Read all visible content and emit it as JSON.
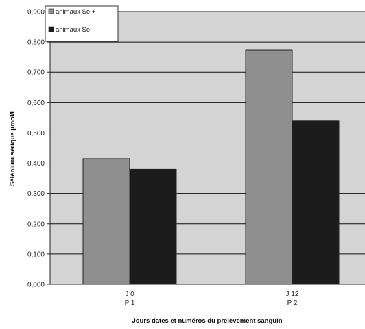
{
  "chart_data": {
    "type": "bar",
    "categories": [
      {
        "line1": "J 0",
        "line2": "P 1"
      },
      {
        "line1": "J 12",
        "line2": "P 2"
      }
    ],
    "series": [
      {
        "name": "animaux Se +",
        "values": [
          0.415,
          0.773
        ],
        "color": "#8f8f8f"
      },
      {
        "name": "animaux Se -",
        "values": [
          0.38,
          0.54
        ],
        "color": "#1c1c1c"
      }
    ],
    "ylabel": "Sélénium sérique µmol/L",
    "xlabel": "Jours dates et numéros du prélèvement sanguin",
    "ylim": [
      0,
      0.9
    ],
    "yticks": [
      "0,000",
      "0,100",
      "0,200",
      "0,300",
      "0,400",
      "0,500",
      "0,600",
      "0,700",
      "0,800",
      "0,900"
    ],
    "grid": true,
    "legend_position": "top-left",
    "plot_background": "#d4d4d4"
  }
}
